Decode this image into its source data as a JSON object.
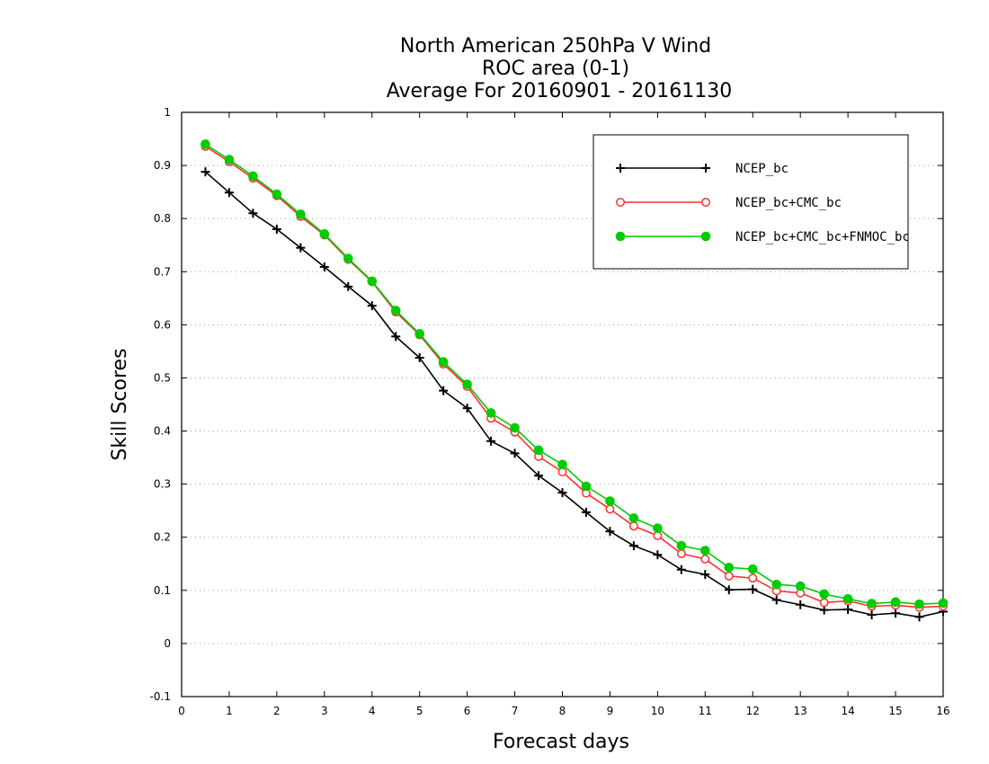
{
  "chart_data": {
    "type": "line",
    "title_lines": [
      "North American 250hPa V Wind",
      "ROC area (0-1)",
      "Average For 20160901 - 20161130"
    ],
    "xlabel": "Forecast days",
    "ylabel": "Skill Scores",
    "xlim": [
      0,
      16
    ],
    "ylim": [
      -0.1,
      1
    ],
    "xticks": [
      0,
      1,
      2,
      3,
      4,
      5,
      6,
      7,
      8,
      9,
      10,
      11,
      12,
      13,
      14,
      15,
      16
    ],
    "yticks": [
      -0.1,
      0,
      0.1,
      0.2,
      0.3,
      0.4,
      0.5,
      0.6,
      0.7,
      0.8,
      0.9,
      1
    ],
    "ytick_labels": [
      "-0.1",
      "0",
      "0.1",
      "0.2",
      "0.3",
      "0.4",
      "0.5",
      "0.6",
      "0.7",
      "0.8",
      "0.9",
      "1"
    ],
    "grid": "horizontal-dotted",
    "legend_position": "top-right",
    "x": [
      0.5,
      1,
      1.5,
      2,
      2.5,
      3,
      3.5,
      4,
      4.5,
      5,
      5.5,
      6,
      6.5,
      7,
      7.5,
      8,
      8.5,
      9,
      9.5,
      10,
      10.5,
      11,
      11.5,
      12,
      12.5,
      13,
      13.5,
      14,
      14.5,
      15,
      15.5,
      16
    ],
    "series": [
      {
        "name": "NCEP_bc",
        "color": "#000000",
        "marker": "plus",
        "values": [
          0.888,
          0.849,
          0.81,
          0.78,
          0.745,
          0.709,
          0.672,
          0.636,
          0.578,
          0.538,
          0.476,
          0.443,
          0.381,
          0.358,
          0.316,
          0.284,
          0.247,
          0.211,
          0.184,
          0.167,
          0.139,
          0.13,
          0.101,
          0.102,
          0.082,
          0.073,
          0.063,
          0.064,
          0.054,
          0.057,
          0.05,
          0.06
        ]
      },
      {
        "name": "NCEP_bc+CMC_bc",
        "color": "#ff3030",
        "marker": "open-circle",
        "values": [
          0.936,
          0.907,
          0.876,
          0.843,
          0.804,
          0.769,
          0.723,
          0.681,
          0.624,
          0.581,
          0.526,
          0.484,
          0.424,
          0.398,
          0.352,
          0.323,
          0.283,
          0.253,
          0.221,
          0.203,
          0.169,
          0.159,
          0.127,
          0.123,
          0.099,
          0.095,
          0.077,
          0.08,
          0.07,
          0.072,
          0.068,
          0.07
        ]
      },
      {
        "name": "NCEP_bc+CMC_bc+FNMOC_bc",
        "color": "#00cc00",
        "marker": "filled-circle",
        "values": [
          0.94,
          0.911,
          0.88,
          0.846,
          0.808,
          0.771,
          0.725,
          0.682,
          0.627,
          0.583,
          0.53,
          0.488,
          0.434,
          0.406,
          0.364,
          0.337,
          0.296,
          0.268,
          0.236,
          0.217,
          0.184,
          0.175,
          0.143,
          0.14,
          0.111,
          0.108,
          0.093,
          0.084,
          0.075,
          0.078,
          0.074,
          0.076
        ]
      }
    ]
  }
}
